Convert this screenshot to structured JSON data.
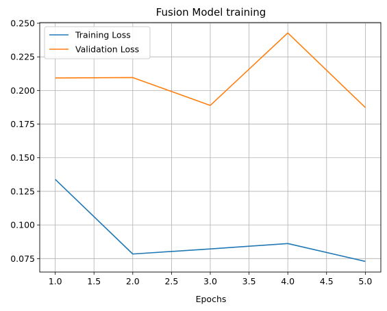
{
  "chart_data": {
    "type": "line",
    "title": "Fusion Model training",
    "xlabel": "Epochs",
    "ylabel": "",
    "x": [
      1.0,
      2.0,
      3.0,
      4.0,
      5.0
    ],
    "series": [
      {
        "name": "Training Loss",
        "color": "#1f77b4",
        "values": [
          0.1339,
          0.0784,
          0.0822,
          0.0862,
          0.0729
        ]
      },
      {
        "name": "Validation Loss",
        "color": "#ff7f0e",
        "values": [
          0.2093,
          0.2096,
          0.1889,
          0.2428,
          0.1873
        ]
      }
    ],
    "xlim": [
      0.8,
      5.2
    ],
    "ylim": [
      0.065,
      0.2505
    ],
    "xticks": [
      1.0,
      1.5,
      2.0,
      2.5,
      3.0,
      3.5,
      4.0,
      4.5,
      5.0
    ],
    "xtick_labels": [
      "1.0",
      "1.5",
      "2.0",
      "2.5",
      "3.0",
      "3.5",
      "4.0",
      "4.5",
      "5.0"
    ],
    "yticks": [
      0.075,
      0.1,
      0.125,
      0.15,
      0.175,
      0.2,
      0.225,
      0.25
    ],
    "ytick_labels": [
      "0.075",
      "0.100",
      "0.125",
      "0.150",
      "0.175",
      "0.200",
      "0.225",
      "0.250"
    ],
    "grid": true,
    "legend_position": "top-left"
  }
}
